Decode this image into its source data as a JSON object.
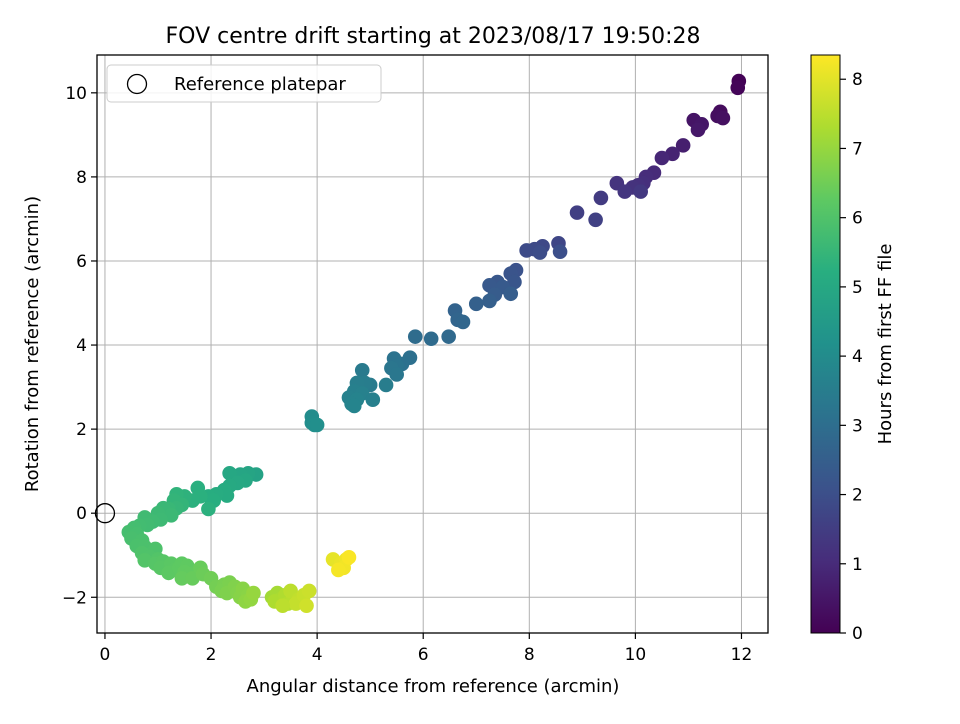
{
  "chart_data": {
    "type": "scatter",
    "title": "FOV centre drift starting at 2023/08/17 19:50:28",
    "xlabel": "Angular distance from reference (arcmin)",
    "ylabel": "Rotation from reference (arcmin)",
    "colorbar_label": "Hours from first FF file",
    "colormap": "viridis",
    "xlim": [
      -0.15,
      12.5
    ],
    "ylim": [
      -2.85,
      10.9
    ],
    "xticks": [
      0,
      2,
      4,
      6,
      8,
      10,
      12
    ],
    "yticks": [
      -2,
      0,
      2,
      4,
      6,
      8,
      10
    ],
    "colorbar_range": [
      0,
      8.35
    ],
    "colorbar_ticks": [
      0,
      1,
      2,
      3,
      4,
      5,
      6,
      7,
      8
    ],
    "grid": true,
    "legend": {
      "placement": "top-left",
      "entries": [
        {
          "label": "Reference platepar",
          "marker": "open-circle"
        }
      ]
    },
    "reference_point": {
      "x": 0,
      "y": 0
    },
    "points": [
      {
        "x": 11.95,
        "y": 10.28,
        "t": 0.05
      },
      {
        "x": 11.93,
        "y": 10.12,
        "t": 0.1
      },
      {
        "x": 11.6,
        "y": 9.55,
        "t": 0.25
      },
      {
        "x": 11.55,
        "y": 9.45,
        "t": 0.3
      },
      {
        "x": 11.65,
        "y": 9.4,
        "t": 0.35
      },
      {
        "x": 11.1,
        "y": 9.35,
        "t": 0.45
      },
      {
        "x": 11.25,
        "y": 9.25,
        "t": 0.5
      },
      {
        "x": 11.18,
        "y": 9.12,
        "t": 0.55
      },
      {
        "x": 10.9,
        "y": 8.75,
        "t": 0.7
      },
      {
        "x": 10.7,
        "y": 8.55,
        "t": 0.8
      },
      {
        "x": 10.5,
        "y": 8.45,
        "t": 0.9
      },
      {
        "x": 10.35,
        "y": 8.1,
        "t": 1.0
      },
      {
        "x": 10.2,
        "y": 8.0,
        "t": 1.05
      },
      {
        "x": 10.15,
        "y": 7.85,
        "t": 1.1
      },
      {
        "x": 10.05,
        "y": 7.8,
        "t": 1.15
      },
      {
        "x": 9.95,
        "y": 7.75,
        "t": 1.2
      },
      {
        "x": 9.65,
        "y": 7.85,
        "t": 1.25
      },
      {
        "x": 9.8,
        "y": 7.65,
        "t": 1.3
      },
      {
        "x": 10.1,
        "y": 7.65,
        "t": 1.35
      },
      {
        "x": 9.35,
        "y": 7.5,
        "t": 1.45
      },
      {
        "x": 8.9,
        "y": 7.15,
        "t": 1.55
      },
      {
        "x": 9.25,
        "y": 6.98,
        "t": 1.6
      },
      {
        "x": 8.55,
        "y": 6.42,
        "t": 1.75
      },
      {
        "x": 8.25,
        "y": 6.35,
        "t": 1.8
      },
      {
        "x": 8.1,
        "y": 6.28,
        "t": 1.85
      },
      {
        "x": 7.95,
        "y": 6.25,
        "t": 1.9
      },
      {
        "x": 8.2,
        "y": 6.2,
        "t": 1.95
      },
      {
        "x": 8.58,
        "y": 6.22,
        "t": 2.0
      },
      {
        "x": 7.75,
        "y": 5.78,
        "t": 2.1
      },
      {
        "x": 7.65,
        "y": 5.7,
        "t": 2.15
      },
      {
        "x": 7.72,
        "y": 5.5,
        "t": 2.2
      },
      {
        "x": 7.4,
        "y": 5.5,
        "t": 2.25
      },
      {
        "x": 7.25,
        "y": 5.42,
        "t": 2.3
      },
      {
        "x": 7.5,
        "y": 5.38,
        "t": 2.35
      },
      {
        "x": 7.35,
        "y": 5.2,
        "t": 2.4
      },
      {
        "x": 7.65,
        "y": 5.22,
        "t": 2.45
      },
      {
        "x": 7.25,
        "y": 5.05,
        "t": 2.5
      },
      {
        "x": 7.0,
        "y": 4.98,
        "t": 2.55
      },
      {
        "x": 6.6,
        "y": 4.82,
        "t": 2.65
      },
      {
        "x": 6.65,
        "y": 4.6,
        "t": 2.7
      },
      {
        "x": 6.75,
        "y": 4.55,
        "t": 2.75
      },
      {
        "x": 6.48,
        "y": 4.2,
        "t": 2.85
      },
      {
        "x": 6.15,
        "y": 4.15,
        "t": 2.9
      },
      {
        "x": 5.85,
        "y": 4.2,
        "t": 2.95
      },
      {
        "x": 5.75,
        "y": 3.7,
        "t": 3.05
      },
      {
        "x": 5.6,
        "y": 3.55,
        "t": 3.1
      },
      {
        "x": 5.45,
        "y": 3.68,
        "t": 3.15
      },
      {
        "x": 5.5,
        "y": 3.5,
        "t": 3.2
      },
      {
        "x": 5.4,
        "y": 3.45,
        "t": 3.25
      },
      {
        "x": 5.5,
        "y": 3.3,
        "t": 3.3
      },
      {
        "x": 4.85,
        "y": 3.4,
        "t": 3.4
      },
      {
        "x": 5.0,
        "y": 3.05,
        "t": 3.45
      },
      {
        "x": 4.9,
        "y": 3.1,
        "t": 3.5
      },
      {
        "x": 5.3,
        "y": 3.05,
        "t": 3.5
      },
      {
        "x": 4.75,
        "y": 3.1,
        "t": 3.55
      },
      {
        "x": 4.7,
        "y": 2.9,
        "t": 3.6
      },
      {
        "x": 4.85,
        "y": 2.85,
        "t": 3.62
      },
      {
        "x": 4.6,
        "y": 2.75,
        "t": 3.65
      },
      {
        "x": 4.75,
        "y": 2.7,
        "t": 3.7
      },
      {
        "x": 4.65,
        "y": 2.6,
        "t": 3.72
      },
      {
        "x": 4.7,
        "y": 2.55,
        "t": 3.75
      },
      {
        "x": 5.05,
        "y": 2.7,
        "t": 3.6
      },
      {
        "x": 3.9,
        "y": 2.3,
        "t": 4.0
      },
      {
        "x": 3.9,
        "y": 2.15,
        "t": 4.05
      },
      {
        "x": 3.95,
        "y": 2.1,
        "t": 4.1
      },
      {
        "x": 4.0,
        "y": 2.1,
        "t": 4.1
      },
      {
        "x": 2.85,
        "y": 0.92,
        "t": 4.8
      },
      {
        "x": 2.7,
        "y": 0.95,
        "t": 4.85
      },
      {
        "x": 2.55,
        "y": 0.92,
        "t": 4.9
      },
      {
        "x": 2.35,
        "y": 0.95,
        "t": 4.95
      },
      {
        "x": 2.65,
        "y": 0.78,
        "t": 4.95
      },
      {
        "x": 2.5,
        "y": 0.72,
        "t": 5.0
      },
      {
        "x": 2.35,
        "y": 0.65,
        "t": 5.05
      },
      {
        "x": 2.25,
        "y": 0.55,
        "t": 5.1
      },
      {
        "x": 2.3,
        "y": 0.42,
        "t": 5.1
      },
      {
        "x": 2.1,
        "y": 0.45,
        "t": 5.15
      },
      {
        "x": 1.95,
        "y": 0.4,
        "t": 5.2
      },
      {
        "x": 2.05,
        "y": 0.3,
        "t": 5.22
      },
      {
        "x": 1.75,
        "y": 0.6,
        "t": 5.25
      },
      {
        "x": 1.8,
        "y": 0.4,
        "t": 5.28
      },
      {
        "x": 1.65,
        "y": 0.3,
        "t": 5.3
      },
      {
        "x": 1.5,
        "y": 0.4,
        "t": 5.35
      },
      {
        "x": 1.95,
        "y": 0.1,
        "t": 5.3
      },
      {
        "x": 1.35,
        "y": 0.45,
        "t": 5.4
      },
      {
        "x": 1.3,
        "y": 0.3,
        "t": 5.45
      },
      {
        "x": 1.45,
        "y": 0.2,
        "t": 5.45
      },
      {
        "x": 1.35,
        "y": 0.12,
        "t": 5.5
      },
      {
        "x": 1.2,
        "y": 0.1,
        "t": 5.55
      },
      {
        "x": 1.1,
        "y": 0.12,
        "t": 5.58
      },
      {
        "x": 1.25,
        "y": -0.05,
        "t": 5.6
      },
      {
        "x": 1.0,
        "y": 0.0,
        "t": 5.62
      },
      {
        "x": 1.05,
        "y": -0.15,
        "t": 5.65
      },
      {
        "x": 0.9,
        "y": -0.2,
        "t": 5.68
      },
      {
        "x": 0.75,
        "y": -0.1,
        "t": 5.7
      },
      {
        "x": 0.8,
        "y": -0.28,
        "t": 5.72
      },
      {
        "x": 0.65,
        "y": -0.3,
        "t": 5.75
      },
      {
        "x": 0.55,
        "y": -0.35,
        "t": 5.78
      },
      {
        "x": 0.45,
        "y": -0.45,
        "t": 5.8
      },
      {
        "x": 0.6,
        "y": -0.5,
        "t": 5.82
      },
      {
        "x": 0.5,
        "y": -0.6,
        "t": 5.85
      },
      {
        "x": 0.7,
        "y": -0.65,
        "t": 5.88
      },
      {
        "x": 0.6,
        "y": -0.78,
        "t": 5.9
      },
      {
        "x": 0.75,
        "y": -0.8,
        "t": 5.92
      },
      {
        "x": 0.95,
        "y": -0.85,
        "t": 5.95
      },
      {
        "x": 0.7,
        "y": -0.95,
        "t": 5.98
      },
      {
        "x": 0.85,
        "y": -1.05,
        "t": 6.0
      },
      {
        "x": 0.75,
        "y": -1.12,
        "t": 6.05
      },
      {
        "x": 1.0,
        "y": -1.1,
        "t": 6.05
      },
      {
        "x": 0.95,
        "y": -1.2,
        "t": 6.1
      },
      {
        "x": 1.1,
        "y": -1.15,
        "t": 6.12
      },
      {
        "x": 1.05,
        "y": -1.3,
        "t": 6.15
      },
      {
        "x": 1.25,
        "y": -1.2,
        "t": 6.18
      },
      {
        "x": 1.3,
        "y": -1.35,
        "t": 6.2
      },
      {
        "x": 1.2,
        "y": -1.42,
        "t": 6.22
      },
      {
        "x": 1.4,
        "y": -1.3,
        "t": 6.25
      },
      {
        "x": 1.45,
        "y": -1.2,
        "t": 6.25
      },
      {
        "x": 1.55,
        "y": -1.25,
        "t": 6.28
      },
      {
        "x": 1.5,
        "y": -1.4,
        "t": 6.3
      },
      {
        "x": 1.6,
        "y": -1.45,
        "t": 6.32
      },
      {
        "x": 1.45,
        "y": -1.55,
        "t": 6.35
      },
      {
        "x": 1.65,
        "y": -1.55,
        "t": 6.38
      },
      {
        "x": 1.8,
        "y": -1.3,
        "t": 6.4
      },
      {
        "x": 1.85,
        "y": -1.45,
        "t": 6.45
      },
      {
        "x": 2.0,
        "y": -1.55,
        "t": 6.5
      },
      {
        "x": 2.1,
        "y": -1.75,
        "t": 6.55
      },
      {
        "x": 2.25,
        "y": -1.7,
        "t": 6.6
      },
      {
        "x": 2.2,
        "y": -1.85,
        "t": 6.62
      },
      {
        "x": 2.35,
        "y": -1.65,
        "t": 6.65
      },
      {
        "x": 2.3,
        "y": -1.9,
        "t": 6.7
      },
      {
        "x": 2.45,
        "y": -1.75,
        "t": 6.72
      },
      {
        "x": 2.5,
        "y": -1.9,
        "t": 6.75
      },
      {
        "x": 2.55,
        "y": -2.0,
        "t": 6.8
      },
      {
        "x": 2.6,
        "y": -1.8,
        "t": 6.82
      },
      {
        "x": 2.7,
        "y": -1.95,
        "t": 6.85
      },
      {
        "x": 2.65,
        "y": -2.1,
        "t": 6.9
      },
      {
        "x": 2.75,
        "y": -2.05,
        "t": 6.95
      },
      {
        "x": 2.8,
        "y": -1.9,
        "t": 7.0
      },
      {
        "x": 3.15,
        "y": -2.0,
        "t": 7.15
      },
      {
        "x": 3.25,
        "y": -1.9,
        "t": 7.2
      },
      {
        "x": 3.3,
        "y": -2.05,
        "t": 7.25
      },
      {
        "x": 3.2,
        "y": -2.1,
        "t": 7.3
      },
      {
        "x": 3.4,
        "y": -1.95,
        "t": 7.35
      },
      {
        "x": 3.45,
        "y": -2.15,
        "t": 7.4
      },
      {
        "x": 3.55,
        "y": -2.0,
        "t": 7.45
      },
      {
        "x": 3.5,
        "y": -1.85,
        "t": 7.5
      },
      {
        "x": 3.65,
        "y": -2.05,
        "t": 7.55
      },
      {
        "x": 3.6,
        "y": -2.15,
        "t": 7.6
      },
      {
        "x": 3.75,
        "y": -1.95,
        "t": 7.65
      },
      {
        "x": 3.85,
        "y": -1.85,
        "t": 7.7
      },
      {
        "x": 3.8,
        "y": -2.2,
        "t": 7.75
      },
      {
        "x": 3.35,
        "y": -2.2,
        "t": 7.5
      },
      {
        "x": 4.3,
        "y": -1.1,
        "t": 8.05
      },
      {
        "x": 4.45,
        "y": -1.2,
        "t": 8.1
      },
      {
        "x": 4.55,
        "y": -1.1,
        "t": 8.15
      },
      {
        "x": 4.5,
        "y": -1.3,
        "t": 8.2
      },
      {
        "x": 4.4,
        "y": -1.35,
        "t": 8.25
      },
      {
        "x": 4.6,
        "y": -1.05,
        "t": 8.3
      }
    ]
  }
}
